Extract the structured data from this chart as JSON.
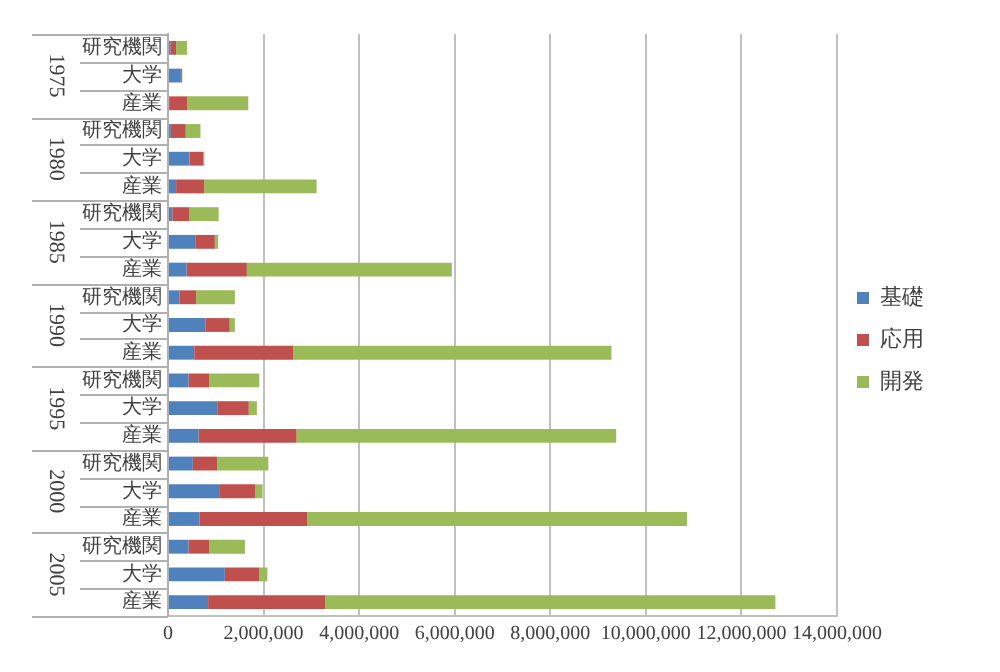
{
  "chart_data": {
    "type": "bar",
    "orientation": "horizontal",
    "stacked": true,
    "categories": [
      "研究機関",
      "大学",
      "産業",
      "研究機関",
      "大学",
      "産業",
      "研究機関",
      "大学",
      "産業",
      "研究機関",
      "大学",
      "産業",
      "研究機関",
      "大学",
      "産業",
      "研究機関",
      "大学",
      "産業",
      "研究機関",
      "大学",
      "産業"
    ],
    "series": [
      {
        "name": "基礎",
        "color": "#4f81bd",
        "values": [
          50000,
          270000,
          40000,
          60000,
          450000,
          170000,
          90000,
          570000,
          390000,
          240000,
          790000,
          550000,
          430000,
          1030000,
          640000,
          520000,
          1070000,
          660000,
          430000,
          1190000,
          840000
        ]
      },
      {
        "name": "応用",
        "color": "#c0504d",
        "values": [
          120000,
          20000,
          360000,
          310000,
          290000,
          590000,
          350000,
          410000,
          1260000,
          350000,
          500000,
          2070000,
          430000,
          660000,
          2050000,
          510000,
          750000,
          2250000,
          430000,
          720000,
          2450000
        ]
      },
      {
        "name": "開発",
        "color": "#9bbb59",
        "values": [
          230000,
          10000,
          1280000,
          310000,
          20000,
          2350000,
          620000,
          70000,
          4290000,
          810000,
          110000,
          6660000,
          1050000,
          170000,
          6690000,
          1070000,
          160000,
          7950000,
          750000,
          170000,
          9420000
        ]
      }
    ],
    "xlim": [
      0,
      14000000
    ],
    "xticks": [
      {
        "value": 0,
        "label": "0"
      },
      {
        "value": 2000000,
        "label": "2,000,000"
      },
      {
        "value": 4000000,
        "label": "4,000,000"
      },
      {
        "value": 6000000,
        "label": "6,000,000"
      },
      {
        "value": 8000000,
        "label": "8,000,000"
      },
      {
        "value": 10000000,
        "label": "10,000,000"
      },
      {
        "value": 12000000,
        "label": "12,000,000"
      },
      {
        "value": 14000000,
        "label": "14,000,000"
      }
    ],
    "annotations": [
      "1975",
      "1980",
      "1985",
      "1990",
      "1995",
      "2000",
      "2005"
    ],
    "grid": "x",
    "legend": "right"
  }
}
